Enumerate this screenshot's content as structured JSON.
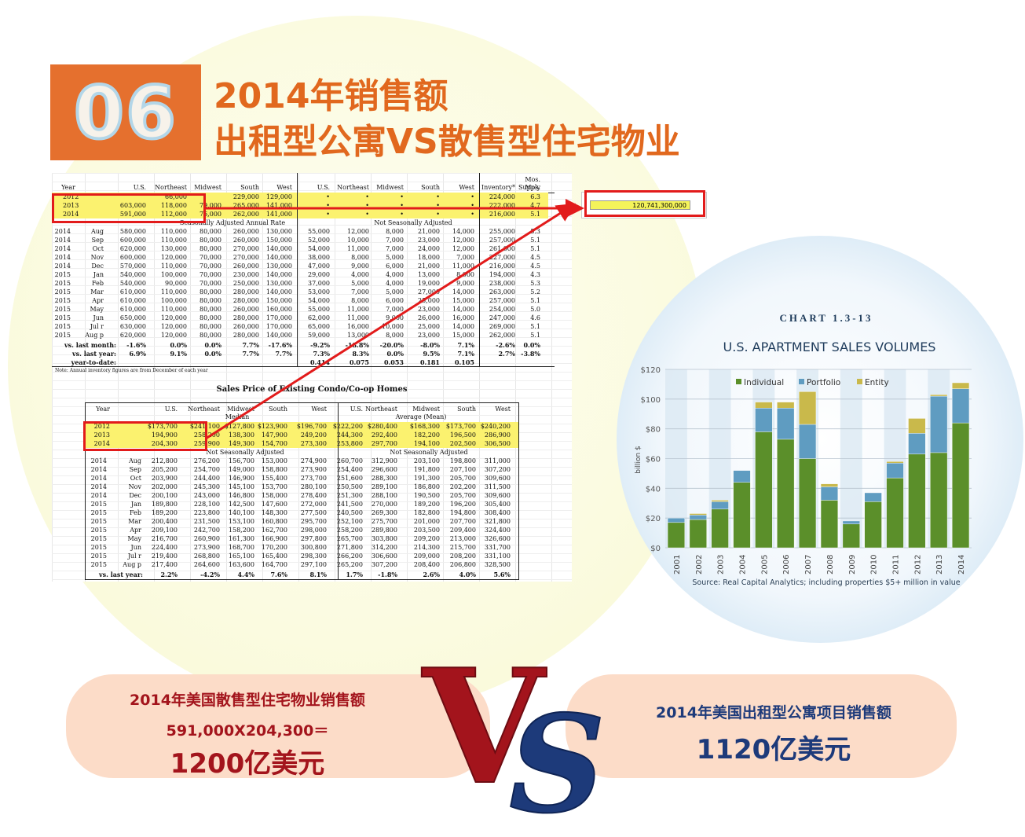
{
  "header": {
    "badge": "06",
    "title_line1": "2014年销售额",
    "title_line2": "出租型公寓VS散售型住宅物业"
  },
  "sheet1": {
    "col_headers": [
      "Year",
      "U.S.",
      "Northeast",
      "Midwest",
      "South",
      "West",
      "U.S.",
      "Northeast",
      "Midwest",
      "South",
      "West",
      "Inventory*",
      "Mos."
    ],
    "supply_label": "Supply",
    "annual_rows": [
      [
        "2012",
        "",
        "66,000",
        "",
        "229,000",
        "129,000",
        "•",
        "•",
        "•",
        "•",
        "•",
        "224,000",
        "6.3"
      ],
      [
        "2013",
        "603,000",
        "118,000",
        "79,000",
        "265,000",
        "141,000",
        "•",
        "•",
        "•",
        "•",
        "•",
        "222,000",
        "4.7"
      ],
      [
        "2014",
        "591,000",
        "112,000",
        "76,000",
        "262,000",
        "141,000",
        "•",
        "•",
        "•",
        "•",
        "•",
        "216,000",
        "5.1"
      ]
    ],
    "sa_label": "Seasonally Adjusted Annual Rate",
    "nsa_label": "Not Seasonally Adjusted",
    "monthly_rows": [
      [
        "2014",
        "Aug",
        "580,000",
        "110,000",
        "80,000",
        "260,000",
        "130,000",
        "55,000",
        "12,000",
        "8,000",
        "21,000",
        "14,000",
        "255,000",
        "5.3"
      ],
      [
        "2014",
        "Sep",
        "600,000",
        "110,000",
        "80,000",
        "260,000",
        "150,000",
        "52,000",
        "10,000",
        "7,000",
        "23,000",
        "12,000",
        "257,000",
        "5.1"
      ],
      [
        "2014",
        "Oct",
        "620,000",
        "130,000",
        "80,000",
        "270,000",
        "140,000",
        "54,000",
        "11,000",
        "7,000",
        "24,000",
        "12,000",
        "261,000",
        "5.1"
      ],
      [
        "2014",
        "Nov",
        "600,000",
        "120,000",
        "70,000",
        "270,000",
        "140,000",
        "38,000",
        "8,000",
        "5,000",
        "18,000",
        "7,000",
        "227,000",
        "4.5"
      ],
      [
        "2014",
        "Dec",
        "570,000",
        "110,000",
        "70,000",
        "260,000",
        "130,000",
        "47,000",
        "9,000",
        "6,000",
        "21,000",
        "11,000",
        "216,000",
        "4.5"
      ],
      [
        "2015",
        "Jan",
        "540,000",
        "100,000",
        "70,000",
        "230,000",
        "140,000",
        "29,000",
        "4,000",
        "4,000",
        "13,000",
        "8,000",
        "194,000",
        "4.3"
      ],
      [
        "2015",
        "Feb",
        "540,000",
        "90,000",
        "70,000",
        "250,000",
        "130,000",
        "37,000",
        "5,000",
        "4,000",
        "19,000",
        "9,000",
        "238,000",
        "5.3"
      ],
      [
        "2015",
        "Mar",
        "610,000",
        "110,000",
        "80,000",
        "280,000",
        "140,000",
        "53,000",
        "7,000",
        "5,000",
        "27,000",
        "14,000",
        "263,000",
        "5.2"
      ],
      [
        "2015",
        "Apr",
        "610,000",
        "100,000",
        "80,000",
        "280,000",
        "150,000",
        "54,000",
        "8,000",
        "6,000",
        "25,000",
        "15,000",
        "257,000",
        "5.1"
      ],
      [
        "2015",
        "May",
        "610,000",
        "110,000",
        "80,000",
        "260,000",
        "160,000",
        "55,000",
        "11,000",
        "7,000",
        "23,000",
        "14,000",
        "254,000",
        "5.0"
      ],
      [
        "2015",
        "Jun",
        "650,000",
        "120,000",
        "80,000",
        "280,000",
        "170,000",
        "62,000",
        "11,000",
        "9,000",
        "26,000",
        "16,000",
        "247,000",
        "4.6"
      ],
      [
        "2015",
        "Jul r",
        "630,000",
        "120,000",
        "80,000",
        "260,000",
        "170,000",
        "65,000",
        "16,000",
        "10,000",
        "25,000",
        "14,000",
        "269,000",
        "5.1"
      ],
      [
        "2015",
        "Aug p",
        "620,000",
        "120,000",
        "80,000",
        "280,000",
        "140,000",
        "59,000",
        "13,000",
        "8,000",
        "23,000",
        "15,000",
        "262,000",
        "5.1"
      ]
    ],
    "summary_rows": [
      [
        "vs. last month:",
        "-1.6%",
        "0.0%",
        "0.0%",
        "7.7%",
        "-17.6%",
        "-9.2%",
        "-18.8%",
        "-20.0%",
        "-8.0%",
        "7.1%",
        "-2.6%",
        "0.0%"
      ],
      [
        "vs. last year:",
        "6.9%",
        "9.1%",
        "0.0%",
        "7.7%",
        "7.7%",
        "7.3%",
        "8.3%",
        "0.0%",
        "9.5%",
        "7.1%",
        "2.7%",
        "-3.8%"
      ],
      [
        "year-to-date:",
        "",
        "",
        "",
        "",
        "",
        "0.414",
        "0.075",
        "0.053",
        "0.181",
        "0.105",
        "",
        ""
      ]
    ],
    "note": "Note: Annual inventory figures are from December of each year"
  },
  "sheet2": {
    "title": "Sales Price of Existing Condo/Co-op Homes",
    "col_headers": [
      "Year",
      "U.S.",
      "Northeast",
      "Midwest",
      "South",
      "West",
      "U.S.",
      "Northeast",
      "Midwest",
      "South",
      "West"
    ],
    "median_label": "Median",
    "mean_label": "Average (Mean)",
    "annual_rows": [
      [
        "2012",
        "$173,700",
        "$241,100",
        "$127,800",
        "$123,900",
        "$196,700",
        "$222,200",
        "$280,400",
        "$168,300",
        "$173,700",
        "$240,200"
      ],
      [
        "2013",
        "194,900",
        "258,200",
        "138,300",
        "147,900",
        "249,200",
        "244,300",
        "292,400",
        "182,200",
        "196,500",
        "286,900"
      ],
      [
        "2014",
        "204,300",
        "259,900",
        "149,300",
        "154,700",
        "273,300",
        "253,800",
        "297,700",
        "194,100",
        "202,500",
        "306,500"
      ]
    ],
    "nsa_label": "Not Seasonally Adjusted",
    "monthly_rows": [
      [
        "2014",
        "Aug",
        "212,800",
        "276,200",
        "156,700",
        "153,000",
        "274,900",
        "260,700",
        "312,900",
        "203,100",
        "198,800",
        "311,000"
      ],
      [
        "2014",
        "Sep",
        "205,200",
        "254,700",
        "149,000",
        "158,800",
        "273,900",
        "254,400",
        "296,600",
        "191,800",
        "207,100",
        "307,200"
      ],
      [
        "2014",
        "Oct",
        "203,900",
        "244,400",
        "146,900",
        "155,400",
        "273,700",
        "251,600",
        "288,300",
        "191,300",
        "205,700",
        "309,600"
      ],
      [
        "2014",
        "Nov",
        "202,000",
        "245,300",
        "145,100",
        "153,700",
        "280,100",
        "250,500",
        "289,100",
        "186,800",
        "202,200",
        "311,500"
      ],
      [
        "2014",
        "Dec",
        "200,100",
        "243,000",
        "146,800",
        "158,000",
        "278,400",
        "251,300",
        "288,100",
        "190,500",
        "205,700",
        "309,600"
      ],
      [
        "2015",
        "Jan",
        "189,800",
        "228,100",
        "142,500",
        "147,600",
        "272,000",
        "241,500",
        "270,000",
        "189,200",
        "196,200",
        "305,400"
      ],
      [
        "2015",
        "Feb",
        "189,200",
        "223,800",
        "140,100",
        "148,300",
        "277,500",
        "240,500",
        "269,300",
        "182,800",
        "194,800",
        "308,400"
      ],
      [
        "2015",
        "Mar",
        "200,400",
        "231,500",
        "153,100",
        "160,800",
        "295,700",
        "252,100",
        "275,700",
        "201,000",
        "207,700",
        "321,800"
      ],
      [
        "2015",
        "Apr",
        "209,100",
        "242,700",
        "158,200",
        "162,700",
        "298,000",
        "258,200",
        "289,800",
        "203,500",
        "209,400",
        "324,400"
      ],
      [
        "2015",
        "May",
        "216,700",
        "260,900",
        "161,300",
        "166,900",
        "297,800",
        "265,700",
        "303,800",
        "209,200",
        "213,000",
        "326,600"
      ],
      [
        "2015",
        "Jun",
        "224,400",
        "273,900",
        "168,700",
        "170,200",
        "300,800",
        "271,800",
        "314,200",
        "214,300",
        "215,700",
        "331,700"
      ],
      [
        "2015",
        "Jul r",
        "219,400",
        "268,800",
        "165,100",
        "165,400",
        "298,300",
        "266,200",
        "306,600",
        "209,000",
        "208,200",
        "331,100"
      ],
      [
        "2015",
        "Aug p",
        "217,400",
        "264,600",
        "163,600",
        "164,700",
        "297,100",
        "265,200",
        "307,200",
        "208,400",
        "206,800",
        "328,500"
      ]
    ],
    "summary_row": [
      "vs. last year:",
      "2.2%",
      "-4.2%",
      "4.4%",
      "7.6%",
      "8.1%",
      "1.7%",
      "-1.8%",
      "2.6%",
      "4.0%",
      "5.6%"
    ]
  },
  "cell_value": "120,741,300,000",
  "chart_data": {
    "type": "bar",
    "title": "CHART 1.3-13",
    "subtitle": "U.S. APARTMENT SALES VOLUMES",
    "ylabel": "billion $",
    "ylim": [
      0,
      120
    ],
    "yticks": [
      "$0",
      "$20",
      "$40",
      "$60",
      "$80",
      "$100",
      "$120"
    ],
    "categories": [
      "2001",
      "2002",
      "2003",
      "2004",
      "2005",
      "2006",
      "2007",
      "2008",
      "2009",
      "2010",
      "2011",
      "2012",
      "2013",
      "2014"
    ],
    "stacked": true,
    "series": [
      {
        "name": "Individual",
        "color": "#5b8f2a",
        "values": [
          17,
          19,
          26,
          44,
          78,
          73,
          60,
          32,
          16,
          31,
          47,
          63,
          64,
          84
        ]
      },
      {
        "name": "Portfolio",
        "color": "#5f9cc1",
        "values": [
          3,
          3,
          5,
          8,
          16,
          21,
          23,
          9,
          2,
          6,
          10,
          14,
          38,
          23
        ]
      },
      {
        "name": "Entity",
        "color": "#c9b94b",
        "values": [
          0,
          1,
          1,
          0,
          4,
          4,
          22,
          2,
          0,
          0,
          1,
          10,
          1,
          4
        ]
      }
    ],
    "legend_position": "top",
    "source": "Source:  Real Capital Analytics; including properties $5+ million in value"
  },
  "bottom": {
    "left_line1": "2014年美国散售型住宅物业销售额",
    "left_line2": "591,000X204,300＝",
    "left_line3": "1200亿美元",
    "right_line1": "2014年美国出租型公寓项目销售额",
    "right_line2": "1120亿美元",
    "vs_left": "V",
    "vs_right": "S"
  },
  "colors": {
    "orange": "#e5702e",
    "dark_red": "#a3141c",
    "navy": "#1d3a7a",
    "highlight": "#fbf26f"
  }
}
